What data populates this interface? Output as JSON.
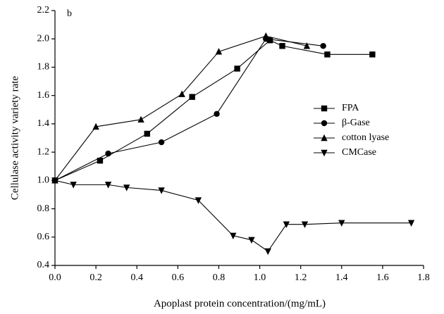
{
  "chart_data": {
    "type": "line",
    "annotation": "b",
    "x_label": "Apoplast protein concentration/(mg/mL)",
    "y_label": "Cellulase activity variety rate",
    "xlim": [
      0,
      1.8
    ],
    "xticks": [
      {
        "value": 0,
        "label": "0.0"
      },
      0.2,
      0.4,
      0.6,
      0.8,
      {
        "value": 1,
        "label": "1.0"
      },
      1.2,
      1.4,
      1.6,
      1.8
    ],
    "ylim": [
      0.4,
      2.2
    ],
    "yticks": [
      0.4,
      0.6,
      0.8,
      {
        "value": 1,
        "label": "1.0"
      },
      1.2,
      1.4,
      1.6,
      1.8,
      {
        "value": 2,
        "label": "2.0"
      },
      2.2
    ],
    "legend_position": "right",
    "series": [
      {
        "name": "FPA",
        "color": "#000000",
        "marker": "square",
        "x": [
          0,
          0.22,
          0.45,
          0.67,
          0.89,
          1.05,
          1.11,
          1.33,
          1.55
        ],
        "values": [
          1.0,
          1.14,
          1.33,
          1.59,
          1.79,
          1.99,
          1.95,
          1.89,
          1.89
        ]
      },
      {
        "name": "β-Gase",
        "color": "#000000",
        "marker": "circle",
        "x": [
          0,
          0.26,
          0.52,
          0.79,
          1.03,
          1.31
        ],
        "values": [
          1.0,
          1.19,
          1.27,
          1.47,
          2.0,
          1.95
        ]
      },
      {
        "name": "cotton lyase",
        "color": "#000000",
        "marker": "triangle-up",
        "x": [
          0,
          0.2,
          0.42,
          0.62,
          0.8,
          1.03,
          1.23
        ],
        "values": [
          1.0,
          1.38,
          1.43,
          1.61,
          1.91,
          2.02,
          1.95
        ]
      },
      {
        "name": "CMCase",
        "color": "#000000",
        "marker": "triangle-down",
        "x": [
          0,
          0.09,
          0.26,
          0.35,
          0.52,
          0.7,
          0.87,
          0.96,
          1.04,
          1.13,
          1.22,
          1.4,
          1.74
        ],
        "values": [
          1.0,
          0.97,
          0.97,
          0.95,
          0.93,
          0.86,
          0.61,
          0.58,
          0.5,
          0.69,
          0.69,
          0.7,
          0.7
        ]
      }
    ]
  }
}
